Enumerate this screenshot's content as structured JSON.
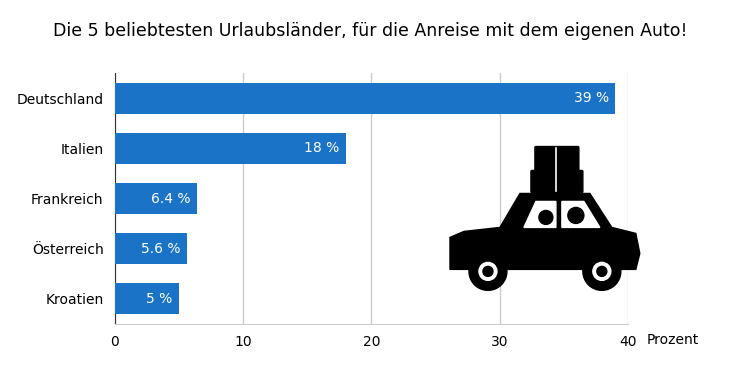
{
  "chart_data": {
    "type": "bar",
    "orientation": "horizontal",
    "title": "Die 5 beliebtesten Urlaubsländer, für die Anreise mit dem eigenen Auto!",
    "x_label": "Prozent",
    "categories": [
      "Deutschland",
      "Italien",
      "Frankreich",
      "Österreich",
      "Kroatien"
    ],
    "values": [
      39,
      18,
      6.4,
      5.6,
      5
    ],
    "value_labels": [
      "39 %",
      "18 %",
      "6.4 %",
      "5.6 %",
      "5 %"
    ],
    "data_labels": true,
    "color": "#1a73c6",
    "xlim": [
      0,
      40
    ],
    "xticks": [
      0,
      10,
      20,
      30,
      40
    ],
    "grid": true
  }
}
